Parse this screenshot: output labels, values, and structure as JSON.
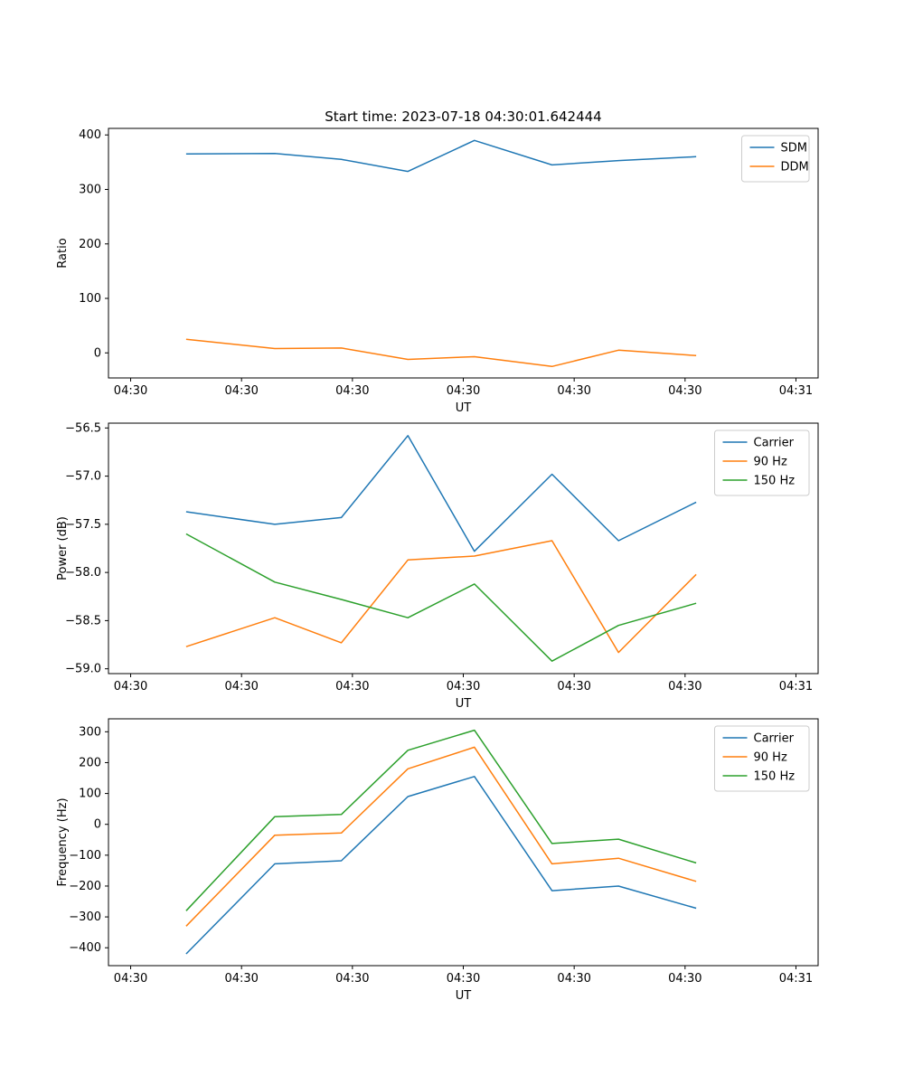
{
  "title": "Start time: 2023-07-18 04:30:01.642444",
  "colors": {
    "blue": "#1f77b4",
    "orange": "#ff7f0e",
    "green": "#2ca02c"
  },
  "chart_data": [
    {
      "type": "line",
      "title": "",
      "xlabel": "UT",
      "ylabel": "Ratio",
      "grid": false,
      "legend_position": "upper right",
      "x": [
        5,
        13,
        19,
        25,
        31,
        38,
        44,
        51
      ],
      "xlim": [
        -2,
        62
      ],
      "ylim": [
        -46,
        412
      ],
      "xticks": [
        0,
        10,
        20,
        30,
        40,
        50,
        60
      ],
      "xtick_labels": [
        "04:30",
        "04:30",
        "04:30",
        "04:30",
        "04:30",
        "04:30",
        "04:31"
      ],
      "yticks": [
        0,
        100,
        200,
        300,
        400
      ],
      "ytick_labels": [
        "0",
        "100",
        "200",
        "300",
        "400"
      ],
      "series": [
        {
          "name": "SDM",
          "color": "#1f77b4",
          "values": [
            365,
            366,
            355,
            333,
            390,
            345,
            353,
            360
          ]
        },
        {
          "name": "DDM",
          "color": "#ff7f0e",
          "values": [
            25,
            8,
            9,
            -12,
            -7,
            -25,
            5,
            -5
          ]
        }
      ]
    },
    {
      "type": "line",
      "title": "",
      "xlabel": "UT",
      "ylabel": "Power (dB)",
      "grid": false,
      "legend_position": "upper right",
      "x": [
        5,
        13,
        19,
        25,
        31,
        38,
        44,
        51
      ],
      "xlim": [
        -2,
        62
      ],
      "ylim": [
        -59.05,
        -56.45
      ],
      "xticks": [
        0,
        10,
        20,
        30,
        40,
        50,
        60
      ],
      "xtick_labels": [
        "04:30",
        "04:30",
        "04:30",
        "04:30",
        "04:30",
        "04:30",
        "04:31"
      ],
      "yticks": [
        -59.0,
        -58.5,
        -58.0,
        -57.5,
        -57.0,
        -56.5
      ],
      "ytick_labels": [
        "−59.0",
        "−58.5",
        "−58.0",
        "−57.5",
        "−57.0",
        "−56.5"
      ],
      "series": [
        {
          "name": "Carrier",
          "color": "#1f77b4",
          "values": [
            -57.37,
            -57.5,
            -57.43,
            -56.58,
            -57.78,
            -56.98,
            -57.67,
            -57.27
          ]
        },
        {
          "name": "90 Hz",
          "color": "#ff7f0e",
          "values": [
            -58.77,
            -58.47,
            -58.73,
            -57.87,
            -57.83,
            -57.67,
            -58.83,
            -58.02
          ]
        },
        {
          "name": "150 Hz",
          "color": "#2ca02c",
          "values": [
            -57.6,
            -58.1,
            -58.28,
            -58.47,
            -58.12,
            -58.92,
            -58.55,
            -58.32
          ]
        }
      ]
    },
    {
      "type": "line",
      "title": "",
      "xlabel": "UT",
      "ylabel": "Frequency (Hz)",
      "grid": false,
      "legend_position": "upper right",
      "x": [
        5,
        13,
        19,
        25,
        31,
        38,
        44,
        51
      ],
      "xlim": [
        -2,
        62
      ],
      "ylim": [
        -458,
        342
      ],
      "xticks": [
        0,
        10,
        20,
        30,
        40,
        50,
        60
      ],
      "xtick_labels": [
        "04:30",
        "04:30",
        "04:30",
        "04:30",
        "04:30",
        "04:30",
        "04:31"
      ],
      "yticks": [
        -400,
        -300,
        -200,
        -100,
        0,
        100,
        200,
        300
      ],
      "ytick_labels": [
        "−400",
        "−300",
        "−200",
        "−100",
        "0",
        "100",
        "200",
        "300"
      ],
      "series": [
        {
          "name": "Carrier",
          "color": "#1f77b4",
          "values": [
            -420,
            -128,
            -118,
            90,
            155,
            -215,
            -200,
            -272
          ]
        },
        {
          "name": "90 Hz",
          "color": "#ff7f0e",
          "values": [
            -330,
            -35,
            -28,
            180,
            250,
            -128,
            -110,
            -185
          ]
        },
        {
          "name": "150 Hz",
          "color": "#2ca02c",
          "values": [
            -280,
            25,
            32,
            240,
            305,
            -62,
            -48,
            -125
          ]
        }
      ]
    }
  ]
}
